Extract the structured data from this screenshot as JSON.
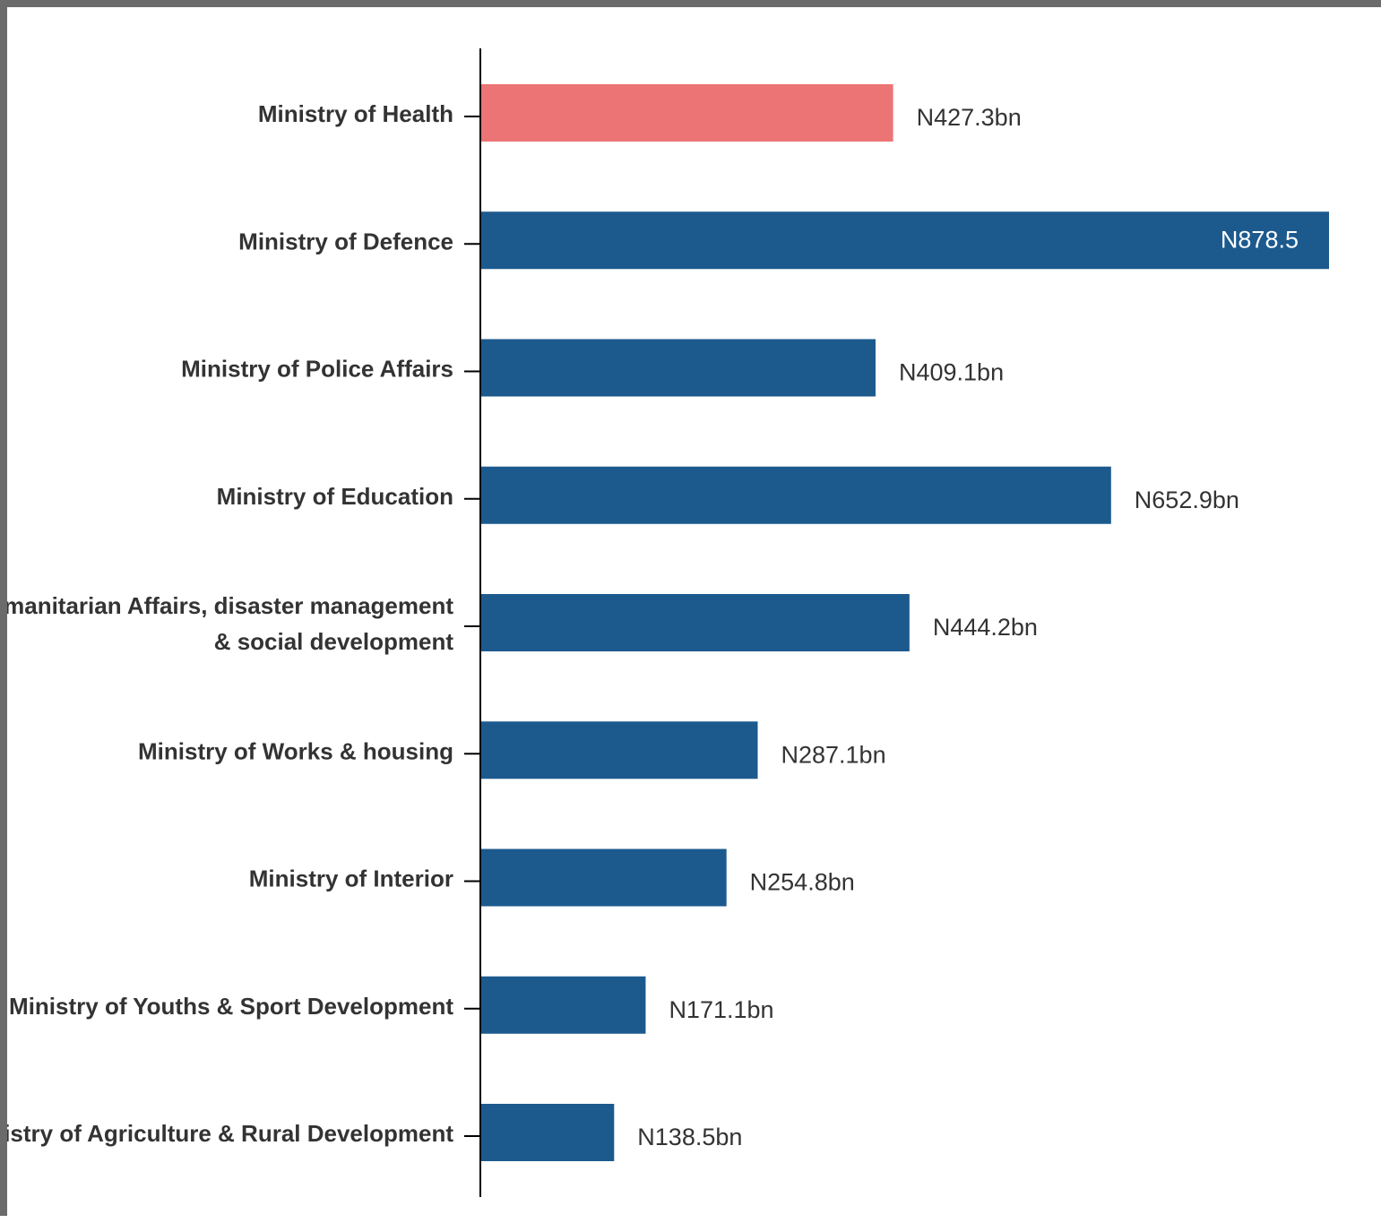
{
  "chart_data": {
    "type": "bar",
    "orientation": "horizontal",
    "categories": [
      [
        "Ministry of Health"
      ],
      [
        "Ministry of Defence"
      ],
      [
        "Ministry of Police Affairs"
      ],
      [
        "Ministry of Education"
      ],
      [
        "Humanitarian Affairs, disaster management",
        "& social development"
      ],
      [
        "Ministry of Works & housing"
      ],
      [
        "Ministry of Interior"
      ],
      [
        "Ministry of Youths & Sport Development"
      ],
      [
        "Ministry of Agriculture & Rural Development"
      ]
    ],
    "values": [
      427.3,
      878.5,
      409.1,
      652.9,
      444.2,
      287.1,
      254.8,
      171.1,
      138.5
    ],
    "value_labels": [
      "N427.3bn",
      "N878.5",
      "N409.1bn",
      "N652.9bn",
      "N444.2bn",
      "N287.1bn",
      "N254.8bn",
      "N171.1bn",
      "N138.5bn"
    ],
    "colors": [
      "#ec7474",
      "#1c5a8e",
      "#1c5a8e",
      "#1c5a8e",
      "#1c5a8e",
      "#1c5a8e",
      "#1c5a8e",
      "#1c5a8e",
      "#1c5a8e"
    ],
    "xlim": [
      0,
      878.5
    ],
    "grid": false,
    "legend": "none",
    "title": "",
    "xlabel": "",
    "ylabel": ""
  }
}
